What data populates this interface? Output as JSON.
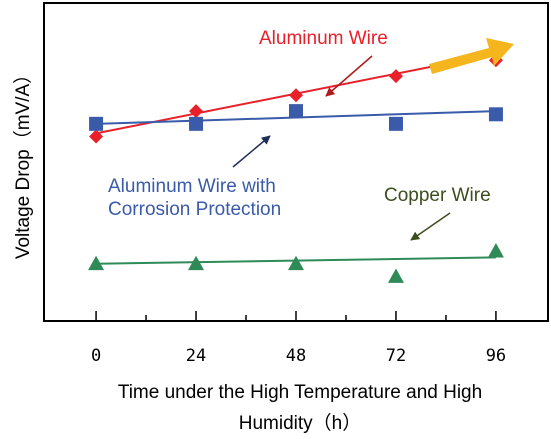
{
  "chart_data": {
    "type": "line",
    "title": "",
    "xlabel_line1": "Time under the High Temperature and High",
    "xlabel_line2": "Humidity（h）",
    "ylabel": "Voltage Drop（mV/A）",
    "x": [
      0,
      24,
      48,
      72,
      96
    ],
    "tick_labels": [
      "0",
      "24",
      "48",
      "72",
      "96"
    ],
    "xlim": [
      -12.5,
      108.5
    ],
    "ylim": [
      0,
      100
    ],
    "y_ticks_labeled": false,
    "grid": false,
    "series": [
      {
        "name": "Aluminum Wire",
        "marker": "diamond",
        "color": "#e8202a",
        "values": [
          58,
          66,
          71,
          77,
          82
        ],
        "trend": [
          59,
          65.5,
          72,
          78.5,
          84
        ]
      },
      {
        "name": "Aluminum Wire with Corrosion Protection",
        "name_line1": "Aluminum  Wire  with",
        "name_line2": "Corrosion  Protection",
        "marker": "square",
        "color": "#3a5ba9",
        "values": [
          62,
          62,
          66,
          62,
          65
        ],
        "trend": [
          62,
          63,
          64,
          65,
          66
        ]
      },
      {
        "name": "Copper Wire",
        "marker": "triangle",
        "color": "#2e8b57",
        "values": [
          18,
          18,
          18,
          14,
          22
        ],
        "trend": [
          18,
          18.5,
          19,
          19.5,
          20
        ]
      }
    ],
    "annotations": [
      {
        "text": "Aluminum  Wire",
        "color": "#e8202a"
      },
      {
        "text": "Copper  Wire",
        "color": "#3b4e1e"
      }
    ],
    "trend_arrow_color": "#f5b51c"
  }
}
